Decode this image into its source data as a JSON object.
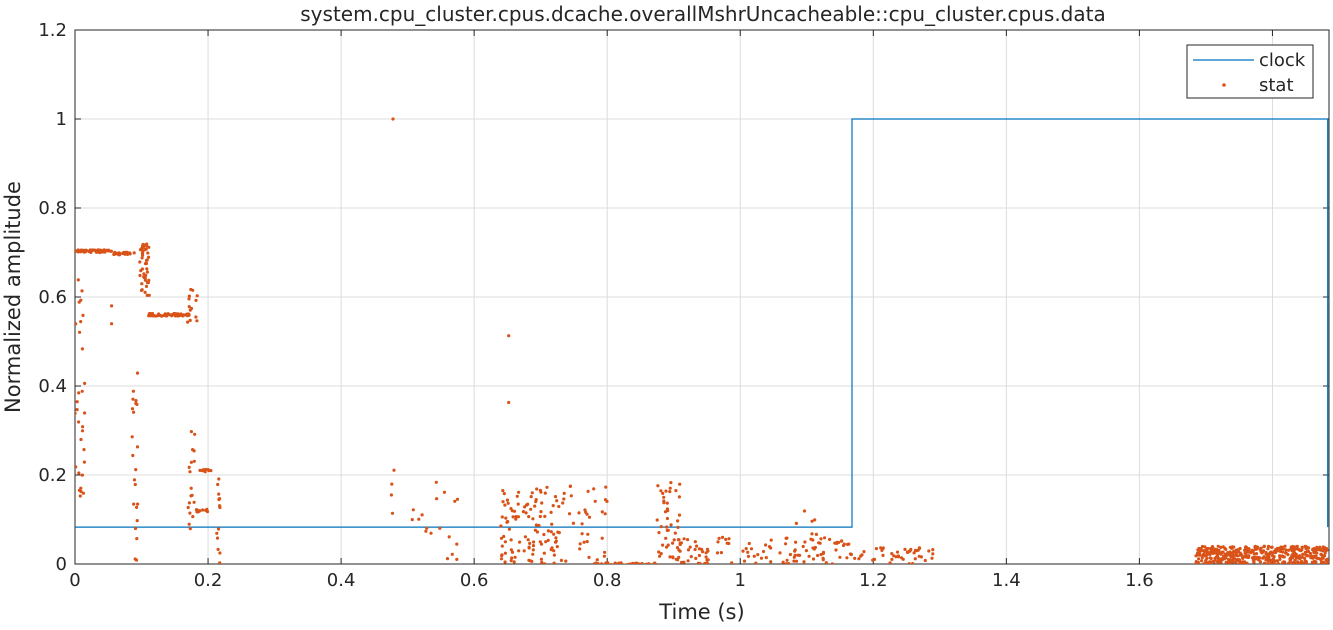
{
  "chart_data": {
    "type": "line",
    "title": "system.cpu_cluster.cpus.dcache.overallMshrUncacheable::cpu_cluster.cpus.data",
    "xlabel": "Time (s)",
    "ylabel": "Normalized amplitude",
    "xlim": [
      0,
      1.885
    ],
    "ylim": [
      0,
      1.2
    ],
    "x_ticks": [
      0,
      0.2,
      0.4,
      0.6,
      0.8,
      1,
      1.2,
      1.4,
      1.6,
      1.8
    ],
    "x_tick_labels": [
      "0",
      "0.2",
      "0.4",
      "0.6",
      "0.8",
      "1",
      "1.2",
      "1.4",
      "1.6",
      "1.8"
    ],
    "y_ticks": [
      0,
      0.2,
      0.4,
      0.6,
      0.8,
      1,
      1.2
    ],
    "y_tick_labels": [
      "0",
      "0.2",
      "0.4",
      "0.6",
      "0.8",
      "1",
      "1.2"
    ],
    "grid": true,
    "legend_position": "top-right",
    "series": [
      {
        "name": "clock",
        "kind": "line",
        "color": "#0072BD",
        "x": [
          0,
          1.168,
          1.168,
          1.883,
          1.883
        ],
        "y": [
          0.083,
          0.083,
          1.0,
          1.0,
          0.083
        ]
      },
      {
        "name": "stat",
        "kind": "points",
        "color": "#D95319",
        "clusters": [
          {
            "x_range": [
              0.0,
              0.055
            ],
            "y": 0.703,
            "count": 60
          },
          {
            "x_range": [
              0.055,
              0.09
            ],
            "y": 0.698,
            "count": 25
          },
          {
            "x_range": [
              0.097,
              0.112
            ],
            "y_range": [
              0.6,
              0.72
            ],
            "count": 45
          },
          {
            "x_range": [
              0.11,
              0.172
            ],
            "y": 0.56,
            "count": 60
          },
          {
            "x_range": [
              0.168,
              0.185
            ],
            "y_range": [
              0.54,
              0.62
            ],
            "count": 15
          },
          {
            "x_range": [
              0.185,
              0.205
            ],
            "y": 0.21,
            "count": 12
          },
          {
            "x_range": [
              0.18,
              0.2
            ],
            "y": 0.12,
            "count": 10
          },
          {
            "x_range": [
              0.0,
              0.015
            ],
            "y_range": [
              0.15,
              0.65
            ],
            "count": 30
          },
          {
            "x_range": [
              0.085,
              0.095
            ],
            "y_range": [
              0.0,
              0.43
            ],
            "count": 22
          },
          {
            "x_range": [
              0.17,
              0.18
            ],
            "y_range": [
              0.05,
              0.3
            ],
            "count": 18
          },
          {
            "x_range": [
              0.212,
              0.218
            ],
            "y_range": [
              0.0,
              0.2
            ],
            "count": 14
          },
          {
            "x_range": [
              0.475,
              0.48
            ],
            "y_range": [
              0.0,
              0.23
            ],
            "count": 4
          },
          {
            "x_range": [
              0.5,
              0.58
            ],
            "y_range": [
              0.0,
              0.19
            ],
            "count": 18
          },
          {
            "x_range": [
              0.64,
              0.73
            ],
            "y_range": [
              0.0,
              0.18
            ],
            "count": 110
          },
          {
            "x_range": [
              0.73,
              0.8
            ],
            "y_range": [
              0.0,
              0.18
            ],
            "count": 35
          },
          {
            "x_range": [
              0.78,
              0.88
            ],
            "y": 0.0,
            "count": 40
          },
          {
            "x_range": [
              0.875,
              0.91
            ],
            "y_range": [
              0.0,
              0.19
            ],
            "count": 45
          },
          {
            "x_range": [
              0.9,
              1.17
            ],
            "y_range": [
              0.0,
              0.06
            ],
            "count": 110
          },
          {
            "x_range": [
              1.08,
              1.12
            ],
            "y_range": [
              0.03,
              0.13
            ],
            "count": 15
          },
          {
            "x_range": [
              1.17,
              1.29
            ],
            "y_range": [
              0.0,
              0.04
            ],
            "count": 45
          },
          {
            "x_range": [
              1.685,
              1.885
            ],
            "y_range": [
              0.0,
              0.04
            ],
            "count": 420
          }
        ],
        "outliers": [
          {
            "x": 0.478,
            "y": 1.0
          },
          {
            "x": 0.652,
            "y": 0.513
          },
          {
            "x": 0.652,
            "y": 0.363
          },
          {
            "x": 0.055,
            "y": 0.58
          },
          {
            "x": 0.055,
            "y": 0.54
          }
        ]
      }
    ]
  }
}
